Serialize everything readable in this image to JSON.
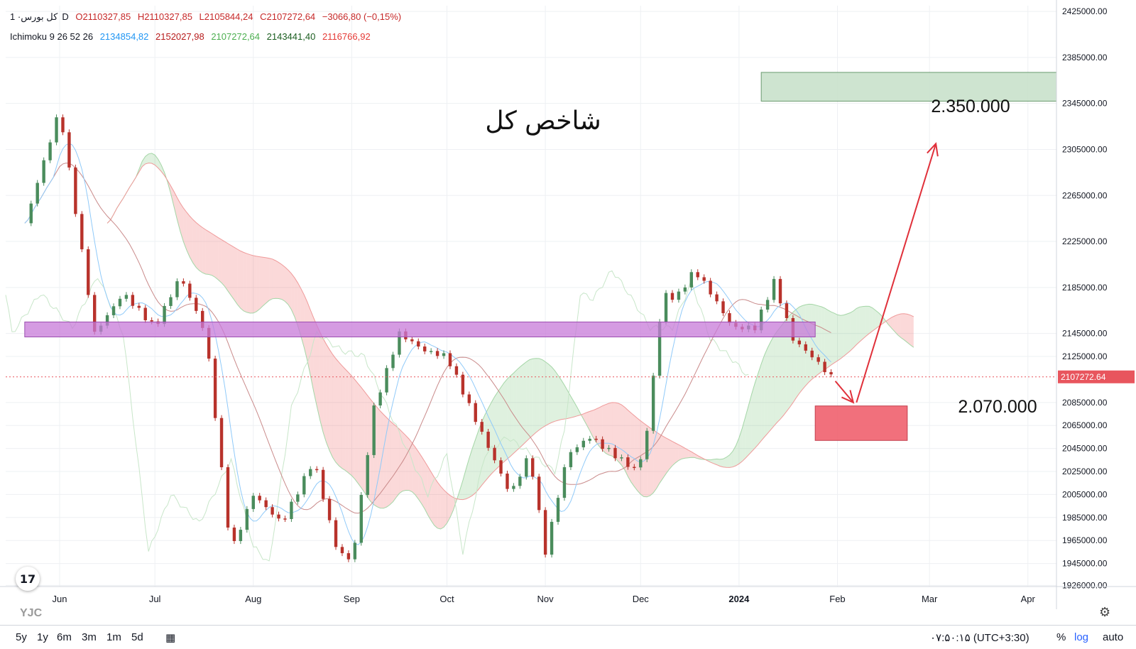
{
  "legend": {
    "symbol": "کل بورس",
    "interval": "· 1D",
    "open": "O2110327,85",
    "high": "H2110327,85",
    "low": "L2105844,24",
    "close": "C2107272,64",
    "change": "−3066,80 (−0,15%)",
    "indicator": "Ichimoku 9 26 52 26",
    "ind_values": [
      "2134854,82",
      "2152027,98",
      "2107272,64",
      "2143441,40",
      "2116766,92"
    ],
    "ind_colors": [
      "#2196f3",
      "#b71c1c",
      "#4caf50",
      "#1b5e20",
      "#e53935"
    ]
  },
  "chart_data": {
    "type": "line",
    "title": "شاخص کل",
    "ylim": [
      1925000,
      2430000
    ],
    "y_ticks": [
      "2425000.00",
      "2385000.00",
      "2345000.00",
      "2305000.00",
      "2265000.00",
      "2225000.00",
      "2185000.00",
      "2145000.00",
      "2125000.00",
      "2085000.00",
      "2065000.00",
      "2045000.00",
      "2025000.00",
      "2005000.00",
      "1985000.00",
      "1965000.00",
      "1945000.00",
      "1926000.00"
    ],
    "x_ticks": [
      "Jun",
      "Jul",
      "Aug",
      "Sep",
      "Oct",
      "Nov",
      "Dec",
      "2024",
      "Feb",
      "Mar",
      "Apr"
    ],
    "last_price": "2107272.64",
    "last_price_value": 2107272.64,
    "x_dates": [
      "2023-05-21",
      "2023-06-01",
      "2023-06-12",
      "2023-06-21",
      "2023-07-01",
      "2023-07-09",
      "2023-07-17",
      "2023-07-25",
      "2023-08-01",
      "2023-08-10",
      "2023-08-20",
      "2023-08-27",
      "2023-09-01",
      "2023-09-08",
      "2023-09-16",
      "2023-09-24",
      "2023-10-01",
      "2023-10-10",
      "2023-10-21",
      "2023-10-27",
      "2023-11-01",
      "2023-11-08",
      "2023-11-15",
      "2023-11-25",
      "2023-11-30",
      "2023-12-03",
      "2023-12-08",
      "2023-12-12",
      "2023-12-18",
      "2023-12-22",
      "2023-12-30",
      "2024-01-06",
      "2024-01-12",
      "2024-01-18",
      "2024-01-24",
      "2024-01-30"
    ],
    "series": [
      {
        "values": [
          2240000,
          2340000,
          2145000,
          2180000,
          2150000,
          2195000,
          2145000,
          1955000,
          2005000,
          1980000,
          2035000,
          1960000,
          1945000,
          2080000,
          2145000,
          2130000,
          2125000,
          2070000,
          2005000,
          2040000,
          1955000,
          2040000,
          2055000,
          2035000,
          2025000,
          2060000,
          2180000,
          2175000,
          2200000,
          2185000,
          2150000,
          2150000,
          2190000,
          2140000,
          2125000,
          2107272.64
        ]
      }
    ],
    "annotations": {
      "support_zone_label": "2.070.000",
      "target_label": "2.350.000",
      "resistance_band": [
        2142000,
        2155000
      ],
      "support_zone": [
        2052000,
        2082000
      ],
      "target_zone": [
        2347000,
        2372000
      ]
    },
    "grid": true
  },
  "ranges": [
    "5y",
    "1y",
    "6m",
    "3m",
    "1m",
    "5d"
  ],
  "time_readout": "۰۷:۵۰:۱۵ (UTC+3:30)",
  "toggles": [
    "%",
    "log",
    "auto"
  ],
  "watermark": "YJC",
  "logo_text": "17",
  "colors": {
    "up": "#4a8c5c",
    "down": "#b8322b",
    "purple_band": "#c779d8",
    "red_zone": "#f0606e",
    "green_zone": "#c5dfc8",
    "arrow": "#e0303a",
    "price_tag": "#e8555d"
  }
}
